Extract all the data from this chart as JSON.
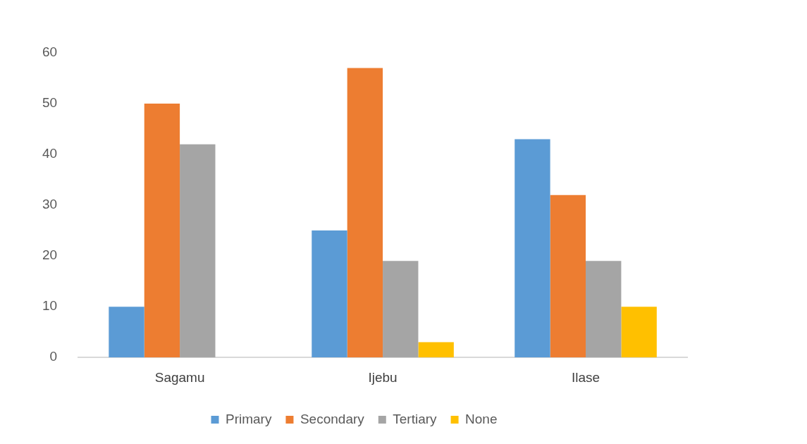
{
  "chart_data": {
    "type": "bar",
    "categories": [
      "Sagamu",
      "Ijebu",
      "Ilase"
    ],
    "series": [
      {
        "name": "Primary",
        "color": "#5b9bd5",
        "values": [
          10,
          25,
          43
        ]
      },
      {
        "name": "Secondary",
        "color": "#ed7d31",
        "values": [
          50,
          57,
          32
        ]
      },
      {
        "name": "Tertiary",
        "color": "#a5a5a5",
        "values": [
          42,
          19,
          19
        ]
      },
      {
        "name": "None",
        "color": "#ffc000",
        "values": [
          0,
          3,
          10
        ]
      }
    ],
    "ylim": [
      0,
      60
    ],
    "yticks": [
      0,
      10,
      20,
      30,
      40,
      50,
      60
    ],
    "grid": false,
    "legend": "bottom"
  }
}
